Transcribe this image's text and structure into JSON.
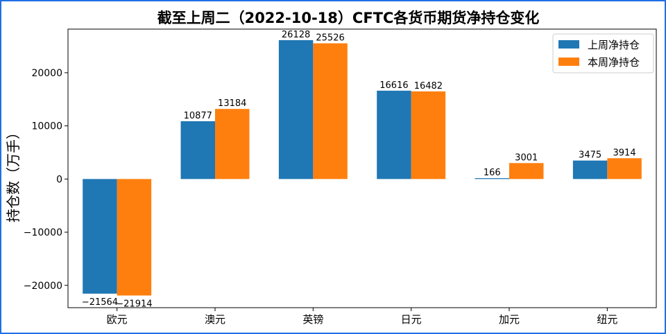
{
  "chart_data": {
    "type": "bar",
    "title": "截至上周二（2022-10-18）CFTC各货币期货净持仓变化",
    "xlabel": "",
    "ylabel": "持仓数（万手）",
    "categories": [
      "欧元",
      "澳元",
      "英镑",
      "日元",
      "加元",
      "纽元"
    ],
    "series": [
      {
        "name": "上周净持仓",
        "color": "#1f77b4",
        "values": [
          -21564,
          10877,
          26128,
          16616,
          166,
          3475
        ]
      },
      {
        "name": "本周净持仓",
        "color": "#ff7f0e",
        "values": [
          -21914,
          13184,
          25526,
          16482,
          3001,
          3914
        ]
      }
    ],
    "ylim": [
      -24200,
      28200
    ],
    "yticks": [
      -20000,
      -10000,
      0,
      10000,
      20000
    ],
    "grid": false,
    "legend_position": "top-right"
  },
  "frame_color": "#1f6fe5"
}
